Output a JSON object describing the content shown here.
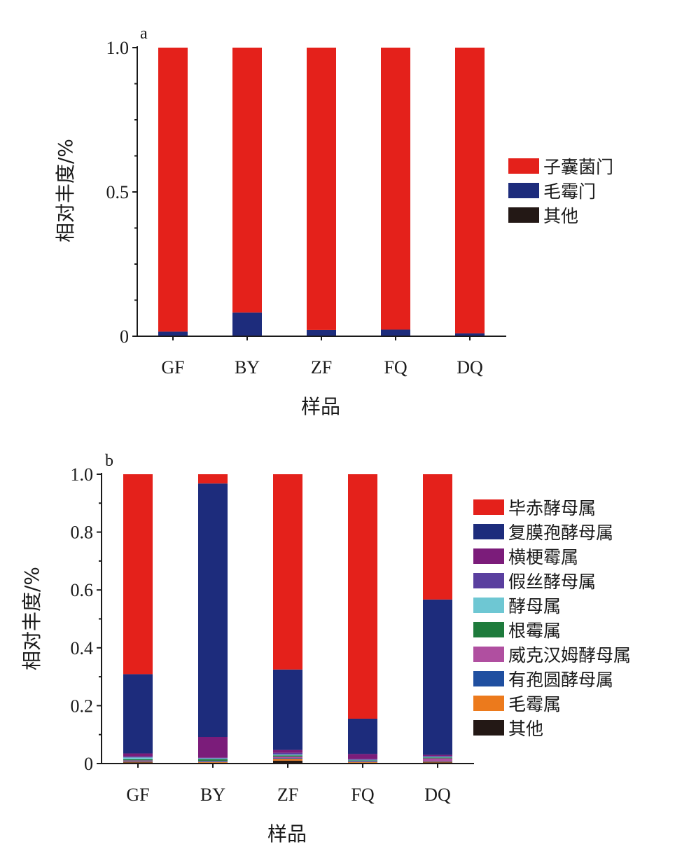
{
  "chart_data": [
    {
      "type": "bar",
      "stacked": true,
      "panel_label": "a",
      "xlabel": "样品",
      "ylabel": "相对丰度/%",
      "ylim": [
        0,
        1.0
      ],
      "yticks": [
        0,
        0.5,
        1.0
      ],
      "ytick_labels": [
        "0",
        "0.5",
        "1.0"
      ],
      "categories": [
        "GF",
        "BY",
        "ZF",
        "FQ",
        "DQ"
      ],
      "legend_position": "right",
      "series": [
        {
          "name": "其他",
          "color": "#231815",
          "values": [
            0.002,
            0.002,
            0.002,
            0.002,
            0.002
          ]
        },
        {
          "name": "毛霉门",
          "color": "#1d2c7c",
          "values": [
            0.014,
            0.08,
            0.02,
            0.021,
            0.008
          ]
        },
        {
          "name": "子囊菌门",
          "color": "#e4211b",
          "values": [
            0.984,
            0.918,
            0.978,
            0.977,
            0.99
          ]
        }
      ],
      "legend_order": [
        "子囊菌门",
        "毛霉门",
        "其他"
      ]
    },
    {
      "type": "bar",
      "stacked": true,
      "panel_label": "b",
      "xlabel": "样品",
      "ylabel": "相对丰度/%",
      "ylim": [
        0,
        1.0
      ],
      "yticks": [
        0,
        0.2,
        0.4,
        0.6,
        0.8,
        1.0
      ],
      "ytick_labels": [
        "0",
        "0.2",
        "0.4",
        "0.6",
        "0.8",
        "1.0"
      ],
      "categories": [
        "GF",
        "BY",
        "ZF",
        "FQ",
        "DQ"
      ],
      "legend_position": "right",
      "series": [
        {
          "name": "其他",
          "color": "#231815",
          "values": [
            0.004,
            0.003,
            0.01,
            0.003,
            0.004
          ]
        },
        {
          "name": "毛霉属",
          "color": "#ec7a1c",
          "values": [
            0.002,
            0.002,
            0.006,
            0.002,
            0.002
          ]
        },
        {
          "name": "有孢圆酵母属",
          "color": "#1f4fa0",
          "values": [
            0.002,
            0.002,
            0.003,
            0.002,
            0.002
          ]
        },
        {
          "name": "威克汉姆酵母属",
          "color": "#b04fa0",
          "values": [
            0.003,
            0.002,
            0.005,
            0.002,
            0.01
          ]
        },
        {
          "name": "根霉属",
          "color": "#1e7b3c",
          "values": [
            0.004,
            0.006,
            0.004,
            0.002,
            0.003
          ]
        },
        {
          "name": "酵母属",
          "color": "#6ec7d3",
          "values": [
            0.006,
            0.003,
            0.003,
            0.002,
            0.002
          ]
        },
        {
          "name": "假丝酵母属",
          "color": "#5a3f9f",
          "values": [
            0.004,
            0.002,
            0.006,
            0.002,
            0.003
          ]
        },
        {
          "name": "横梗霉属",
          "color": "#7b1c7a",
          "values": [
            0.01,
            0.072,
            0.01,
            0.018,
            0.004
          ]
        },
        {
          "name": "复膜孢酵母属",
          "color": "#1d2c7c",
          "values": [
            0.274,
            0.876,
            0.278,
            0.122,
            0.537
          ]
        },
        {
          "name": "毕赤酵母属",
          "color": "#e4211b",
          "values": [
            0.691,
            0.032,
            0.675,
            0.845,
            0.433
          ]
        }
      ],
      "legend_order": [
        "毕赤酵母属",
        "复膜孢酵母属",
        "横梗霉属",
        "假丝酵母属",
        "酵母属",
        "根霉属",
        "威克汉姆酵母属",
        "有孢圆酵母属",
        "毛霉属",
        "其他"
      ]
    }
  ]
}
